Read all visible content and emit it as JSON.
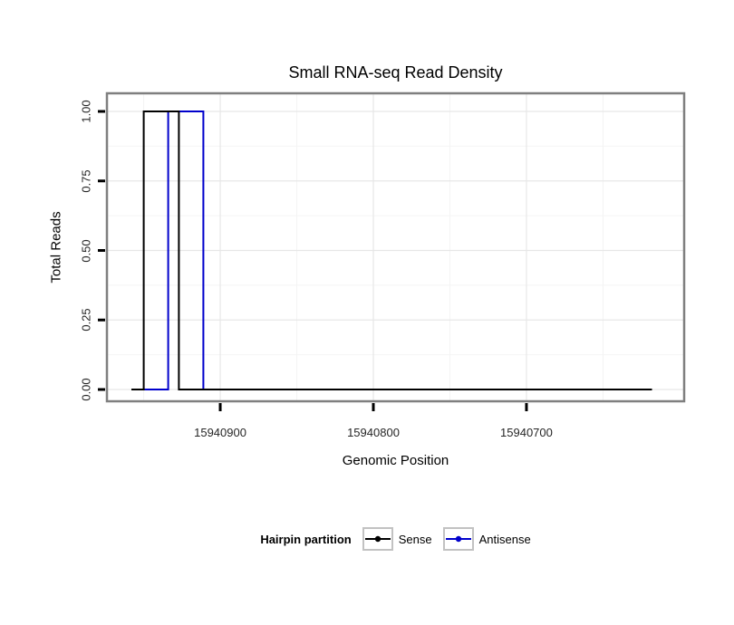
{
  "chart_data": {
    "type": "line",
    "subtype": "step",
    "title": "Small RNA-seq Read Density",
    "xlabel": "Genomic Position",
    "ylabel": "Total Reads",
    "x_axis_reversed": true,
    "xlim": [
      15940974,
      15940597
    ],
    "ylim": [
      0,
      1
    ],
    "x_tick_values": [
      15940900,
      15940800,
      15940700
    ],
    "x_tick_labels": [
      "15940900",
      "15940800",
      "15940700"
    ],
    "x_minor_tick_values": [
      15940950,
      15940850,
      15940750,
      15940650
    ],
    "y_tick_values": [
      0,
      0.25,
      0.5,
      0.75,
      1
    ],
    "y_tick_labels": [
      "0.00",
      "0.25",
      "0.50",
      "0.75",
      "1.00"
    ],
    "y_minor_tick_values": [
      0.125,
      0.375,
      0.625,
      0.875
    ],
    "grid": true,
    "legend_position": "bottom",
    "series": [
      {
        "name": "Sense",
        "color": "#000000",
        "points": [
          [
            15940958,
            0
          ],
          [
            15940950,
            0
          ],
          [
            15940950,
            1
          ],
          [
            15940927,
            1
          ],
          [
            15940927,
            0
          ],
          [
            15940618,
            0
          ]
        ]
      },
      {
        "name": "Antisense",
        "color": "#0000CC",
        "points": [
          [
            15940958,
            0
          ],
          [
            15940934,
            0
          ],
          [
            15940934,
            1
          ],
          [
            15940911,
            1
          ],
          [
            15940911,
            0
          ],
          [
            15940618,
            0
          ]
        ]
      }
    ]
  },
  "legend": {
    "title": "Hairpin partition",
    "items": [
      {
        "label": "Sense",
        "color": "#000000"
      },
      {
        "label": "Antisense",
        "color": "#0000CC"
      }
    ]
  },
  "colors": {
    "panel_border": "#7f7f7f",
    "grid_major": "#e7e7e7",
    "grid_minor": "#f4f4f4",
    "tick": "#000000",
    "tick_label": "#262626"
  }
}
